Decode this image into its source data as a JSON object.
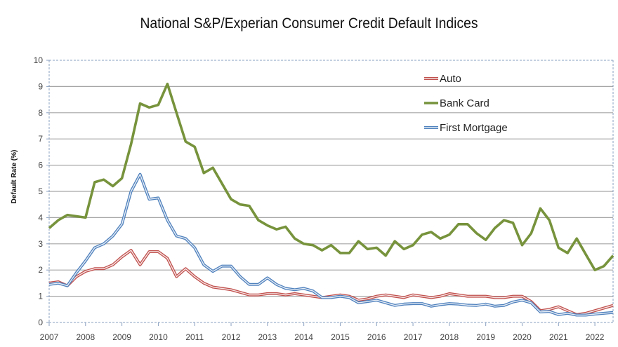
{
  "chart_data": {
    "type": "line",
    "title": "National S&P/Experian Consumer Credit Default Indices",
    "xlabel": "",
    "ylabel": "Default Rate (%)",
    "ylim": [
      0,
      10
    ],
    "xlim": [
      2007,
      2022.5
    ],
    "yticks": [
      "0",
      "1",
      "2",
      "3",
      "4",
      "5",
      "6",
      "7",
      "8",
      "9",
      "10"
    ],
    "xticks": [
      "2007",
      "2008",
      "2009",
      "2010",
      "2011",
      "2012",
      "2013",
      "2014",
      "2015",
      "2016",
      "2017",
      "2018",
      "2019",
      "2020",
      "2021",
      "2022"
    ],
    "grid": true,
    "legend": "top-right",
    "x": [
      2007.0,
      2007.25,
      2007.5,
      2007.75,
      2008.0,
      2008.25,
      2008.5,
      2008.75,
      2009.0,
      2009.25,
      2009.5,
      2009.75,
      2010.0,
      2010.25,
      2010.5,
      2010.75,
      2011.0,
      2011.25,
      2011.5,
      2011.75,
      2012.0,
      2012.25,
      2012.5,
      2012.75,
      2013.0,
      2013.25,
      2013.5,
      2013.75,
      2014.0,
      2014.25,
      2014.5,
      2014.75,
      2015.0,
      2015.25,
      2015.5,
      2015.75,
      2016.0,
      2016.25,
      2016.5,
      2016.75,
      2017.0,
      2017.25,
      2017.5,
      2017.75,
      2018.0,
      2018.25,
      2018.5,
      2018.75,
      2019.0,
      2019.25,
      2019.5,
      2019.75,
      2020.0,
      2020.25,
      2020.5,
      2020.75,
      2021.0,
      2021.25,
      2021.5,
      2021.75,
      2022.0,
      2022.25,
      2022.5
    ],
    "series": [
      {
        "name": "Auto",
        "color": "#c0504d",
        "values": [
          1.5,
          1.55,
          1.4,
          1.75,
          1.95,
          2.05,
          2.05,
          2.2,
          2.5,
          2.75,
          2.2,
          2.7,
          2.7,
          2.45,
          1.75,
          2.05,
          1.75,
          1.5,
          1.35,
          1.3,
          1.25,
          1.15,
          1.05,
          1.05,
          1.1,
          1.1,
          1.05,
          1.1,
          1.05,
          1.0,
          0.95,
          1.0,
          1.05,
          1.0,
          0.85,
          0.9,
          1.0,
          1.05,
          1.0,
          0.95,
          1.05,
          1.0,
          0.95,
          1.0,
          1.1,
          1.05,
          1.0,
          1.0,
          1.0,
          0.95,
          0.95,
          1.0,
          1.0,
          0.8,
          0.45,
          0.5,
          0.6,
          0.45,
          0.3,
          0.35,
          0.45,
          0.55,
          0.65
        ]
      },
      {
        "name": "Bank Card",
        "color": "#77933c",
        "values": [
          3.6,
          3.9,
          4.1,
          4.05,
          4.0,
          5.35,
          5.45,
          5.2,
          5.5,
          6.8,
          8.35,
          8.2,
          8.3,
          9.1,
          8.0,
          6.9,
          6.7,
          5.7,
          5.9,
          5.3,
          4.7,
          4.5,
          4.45,
          3.9,
          3.7,
          3.55,
          3.65,
          3.2,
          3.0,
          2.95,
          2.75,
          2.95,
          2.65,
          2.65,
          3.1,
          2.8,
          2.85,
          2.55,
          3.1,
          2.8,
          2.95,
          3.35,
          3.45,
          3.2,
          3.35,
          3.75,
          3.75,
          3.4,
          3.15,
          3.6,
          3.9,
          3.8,
          2.95,
          3.4,
          4.35,
          3.9,
          2.85,
          2.65,
          3.2,
          2.6,
          2.0,
          2.15,
          2.55
        ]
      },
      {
        "name": "First Mortgage",
        "color": "#4f81bd",
        "values": [
          1.45,
          1.5,
          1.4,
          1.9,
          2.35,
          2.85,
          3.0,
          3.3,
          3.75,
          5.0,
          5.65,
          4.7,
          4.75,
          3.9,
          3.3,
          3.2,
          2.85,
          2.2,
          1.95,
          2.15,
          2.15,
          1.75,
          1.45,
          1.45,
          1.7,
          1.45,
          1.3,
          1.25,
          1.3,
          1.2,
          0.95,
          0.95,
          1.0,
          0.95,
          0.75,
          0.8,
          0.85,
          0.75,
          0.65,
          0.7,
          0.72,
          0.72,
          0.62,
          0.68,
          0.72,
          0.7,
          0.66,
          0.65,
          0.7,
          0.62,
          0.65,
          0.78,
          0.85,
          0.75,
          0.4,
          0.42,
          0.3,
          0.35,
          0.28,
          0.28,
          0.32,
          0.35,
          0.38
        ]
      }
    ]
  }
}
